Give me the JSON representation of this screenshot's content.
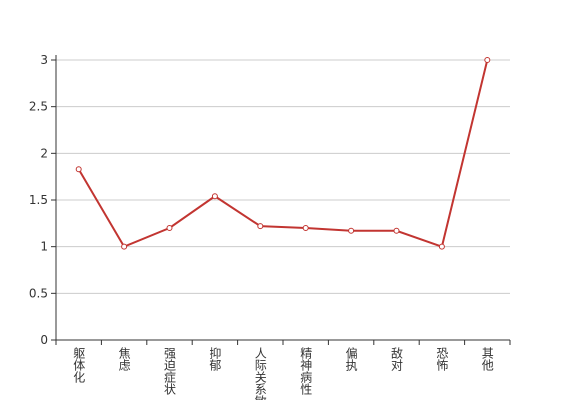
{
  "chart_data": {
    "type": "line",
    "categories": [
      "躯体化",
      "焦虑",
      "强迫症状",
      "抑郁",
      "人际关系敏感",
      "精神病性",
      "偏执",
      "敌对",
      "恐怖",
      "其他"
    ],
    "values": [
      1.83,
      1,
      1.2,
      1.54,
      1.22,
      1.2,
      1.17,
      1.17,
      1,
      3
    ],
    "color": "#c23531",
    "ylim": [
      0,
      3
    ],
    "yticks": [
      0,
      0.5,
      1,
      1.5,
      2,
      2.5,
      3
    ],
    "grid": true
  }
}
